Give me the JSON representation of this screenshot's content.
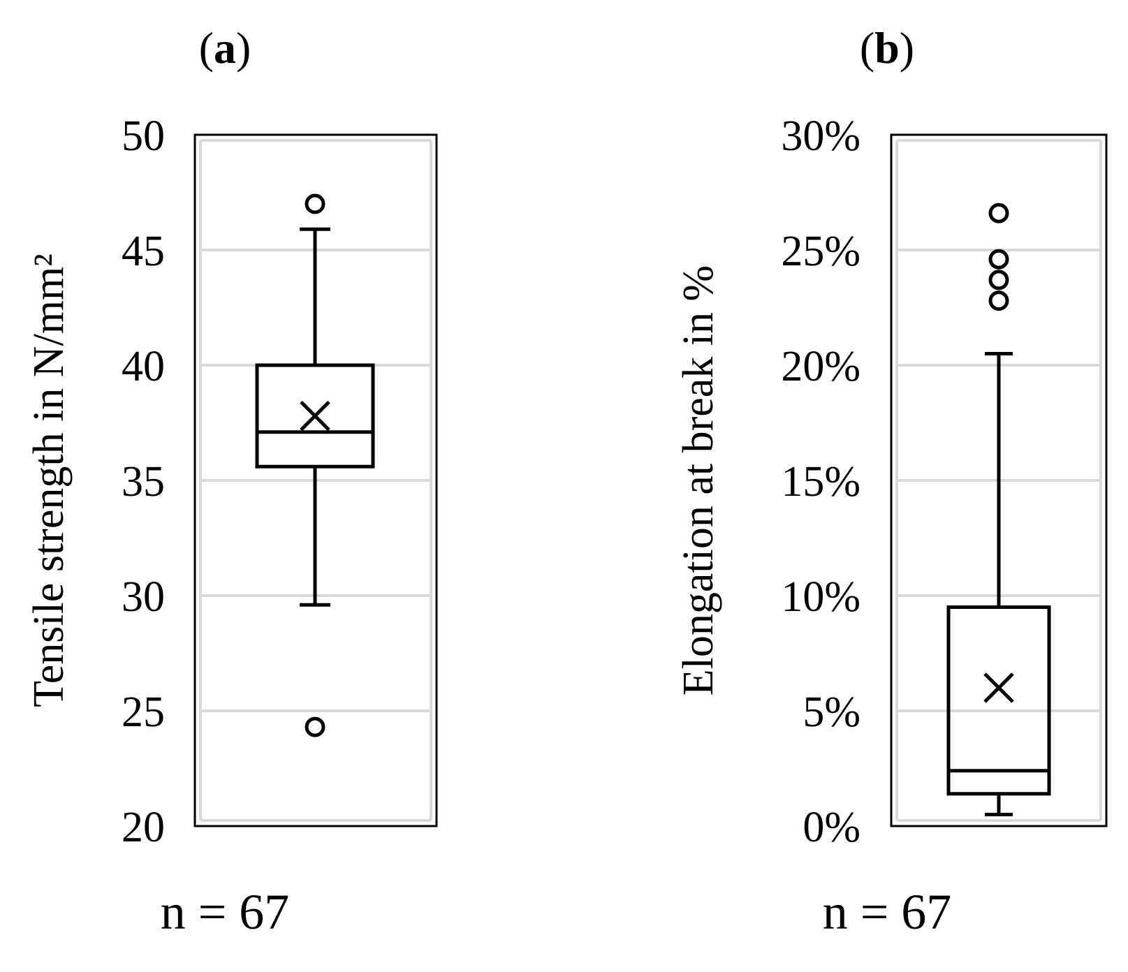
{
  "chart_data": [
    {
      "type": "box",
      "panel_label": {
        "open": "(",
        "letter": "a",
        "close": ")"
      },
      "ylabel": "Tensile strength in N/mm²",
      "ylim": [
        20,
        50
      ],
      "yticks": [
        20,
        25,
        30,
        35,
        40,
        45,
        50
      ],
      "ytick_labels": [
        "20",
        "25",
        "30",
        "35",
        "40",
        "45",
        "50"
      ],
      "grid": true,
      "box": {
        "whisker_low": 29.6,
        "q1": 35.6,
        "median": 37.1,
        "q3": 40.0,
        "whisker_high": 45.9,
        "mean": 37.8
      },
      "outliers": [
        47.0,
        24.3
      ],
      "n_label": "n = 67"
    },
    {
      "type": "box",
      "panel_label": {
        "open": "(",
        "letter": "b",
        "close": ")"
      },
      "ylabel": "Elongation at break in %",
      "ylim": [
        0,
        30
      ],
      "yticks": [
        0,
        5,
        10,
        15,
        20,
        25,
        30
      ],
      "ytick_labels": [
        "0%",
        "5%",
        "10%",
        "15%",
        "20%",
        "25%",
        "30%"
      ],
      "grid": true,
      "box": {
        "whisker_low": 0.5,
        "q1": 1.4,
        "median": 2.4,
        "q3": 9.5,
        "whisker_high": 20.5,
        "mean": 6.0
      },
      "outliers": [
        26.6,
        24.6,
        23.7,
        22.8
      ],
      "n_label": "n = 67"
    }
  ]
}
